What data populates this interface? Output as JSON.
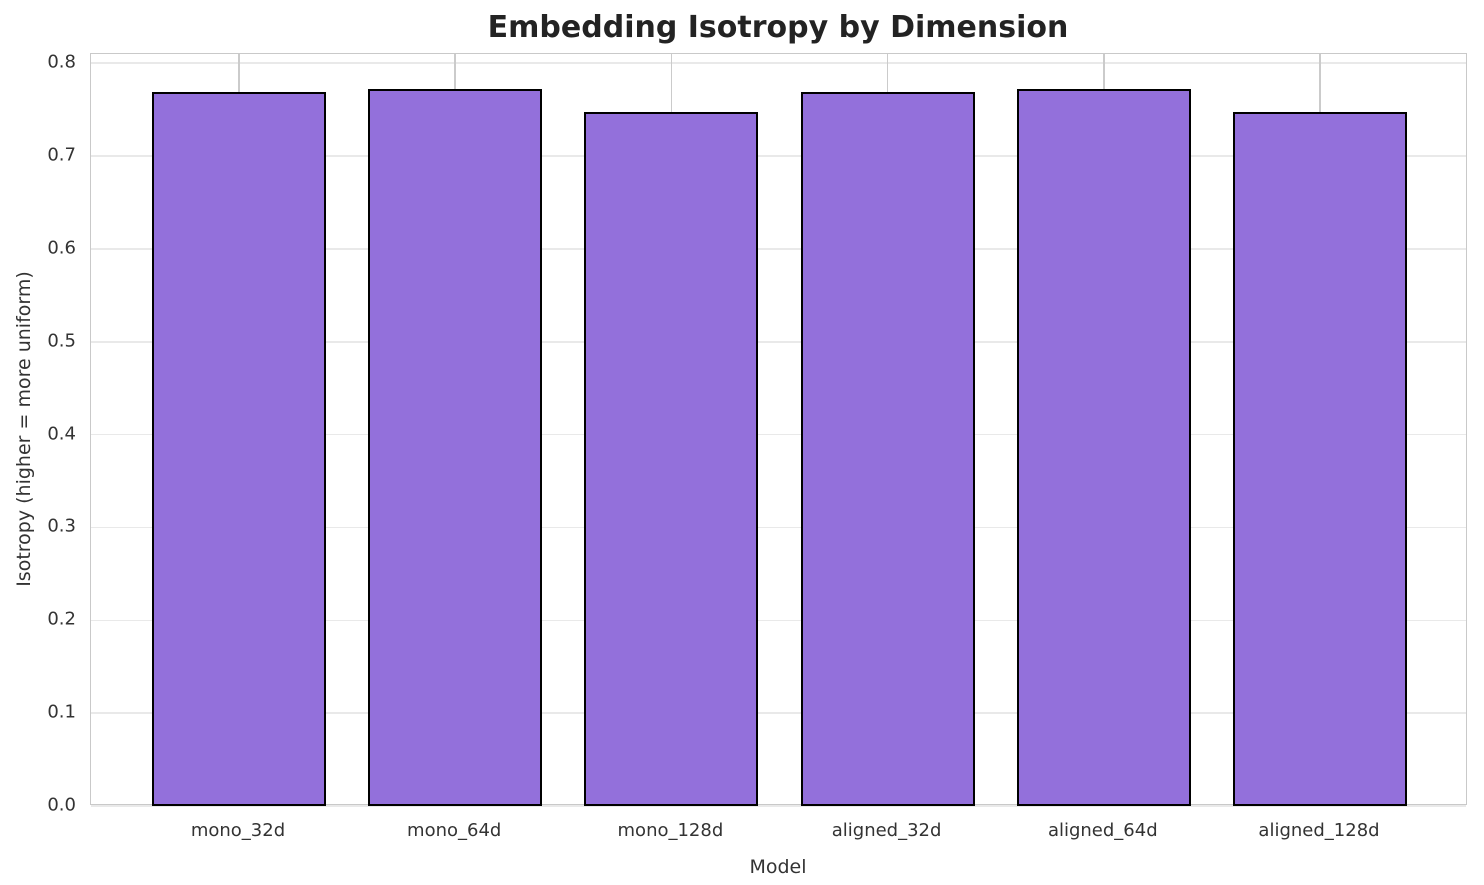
{
  "chart_data": {
    "type": "bar",
    "title": "Embedding Isotropy by Dimension",
    "xlabel": "Model",
    "ylabel": "Isotropy (higher = more uniform)",
    "categories": [
      "mono_32d",
      "mono_64d",
      "mono_128d",
      "aligned_32d",
      "aligned_64d",
      "aligned_128d"
    ],
    "values": [
      0.769,
      0.772,
      0.747,
      0.769,
      0.772,
      0.747
    ],
    "ylim": [
      0,
      0.81
    ],
    "yticks": [
      0.0,
      0.1,
      0.2,
      0.3,
      0.4,
      0.5,
      0.6,
      0.7,
      0.8
    ],
    "ytick_labels": [
      "0.0",
      "0.1",
      "0.2",
      "0.3",
      "0.4",
      "0.5",
      "0.6",
      "0.7",
      "0.8"
    ],
    "grid": true,
    "legend_position": "none",
    "bar_color": "#9370DB",
    "bar_edge_color": "#000000"
  },
  "colors": {
    "background": "#ffffff",
    "grid_horizontal": "#e9e9e9",
    "grid_vertical": "#cbcbcb",
    "spine": "#c9c9c9",
    "tick_text": "#333333",
    "title_text": "#232323"
  }
}
